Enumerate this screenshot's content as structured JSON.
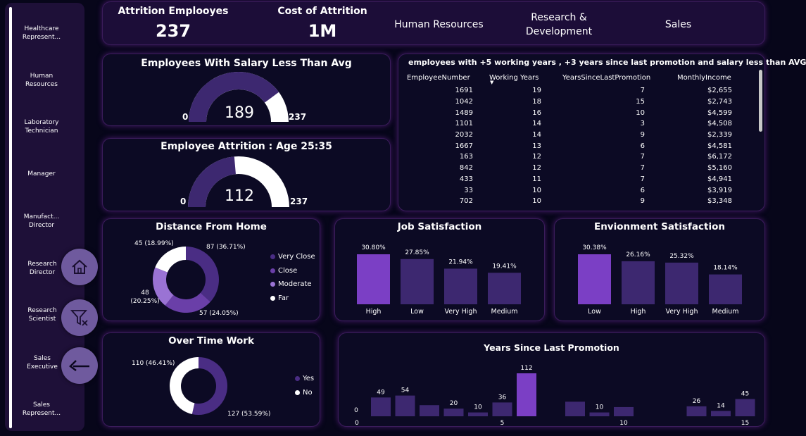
{
  "sidebar": {
    "items": [
      {
        "label": "Healthcare Represent..."
      },
      {
        "label": "Human Resources"
      },
      {
        "label": "Laboratory Technician"
      },
      {
        "label": "Manager"
      },
      {
        "label": "Manufact... Director"
      },
      {
        "label": "Research Director"
      },
      {
        "label": "Research Scientist"
      },
      {
        "label": "Sales Executive"
      },
      {
        "label": "Sales Represent..."
      }
    ]
  },
  "kpis": {
    "attrition_label": "Attrition Emplooyes",
    "attrition_value": "237",
    "cost_label": "Cost of Attrition",
    "cost_value": "1M"
  },
  "departments": [
    "Human Resources",
    "Research & Development",
    "Sales"
  ],
  "gauges": [
    {
      "title": "Employees With Salary Less Than Avg",
      "value": 189,
      "min": 0,
      "max": 237
    },
    {
      "title": "Employee Attrition : Age 25:35",
      "value": 112,
      "min": 0,
      "max": 237
    }
  ],
  "employee_table": {
    "title": "employees with +5 working years , +3 years since last promotion and salary less than AVG",
    "columns": [
      "EmployeeNumber",
      "Working Years",
      "YearsSinceLastPromotion",
      "MonthlyIncome"
    ],
    "rows": [
      [
        "1691",
        "19",
        "7",
        "$2,655"
      ],
      [
        "1042",
        "18",
        "15",
        "$2,743"
      ],
      [
        "1489",
        "16",
        "10",
        "$4,599"
      ],
      [
        "1101",
        "14",
        "3",
        "$4,508"
      ],
      [
        "2032",
        "14",
        "9",
        "$2,339"
      ],
      [
        "1667",
        "13",
        "6",
        "$4,581"
      ],
      [
        "163",
        "12",
        "7",
        "$6,172"
      ],
      [
        "842",
        "12",
        "7",
        "$5,160"
      ],
      [
        "433",
        "11",
        "7",
        "$4,941"
      ],
      [
        "33",
        "10",
        "6",
        "$3,919"
      ],
      [
        "702",
        "10",
        "9",
        "$3,348"
      ]
    ]
  },
  "chart_data": [
    {
      "type": "pie",
      "title": "Distance From Home",
      "categories": [
        "Very Close",
        "Close",
        "Moderate",
        "Far"
      ],
      "values": [
        87,
        57,
        48,
        45
      ],
      "labels": [
        "87 (36.71%)",
        "57 (24.05%)",
        "48 (20.25%)",
        "45 (18.99%)"
      ],
      "colors": [
        "#4a2d84",
        "#6a3fa8",
        "#9a73d4",
        "#ffffff"
      ]
    },
    {
      "type": "bar",
      "title": "Job Satisfaction",
      "categories": [
        "High",
        "Low",
        "Very High",
        "Medium"
      ],
      "values": [
        30.8,
        27.85,
        21.94,
        19.41
      ],
      "labels": [
        "30.80%",
        "27.85%",
        "21.94%",
        "19.41%"
      ]
    },
    {
      "type": "bar",
      "title": "Envionment Satisfaction",
      "categories": [
        "Low",
        "High",
        "Very High",
        "Medium"
      ],
      "values": [
        30.38,
        26.16,
        25.32,
        18.14
      ],
      "labels": [
        "30.38%",
        "26.16%",
        "25.32%",
        "18.14%"
      ]
    },
    {
      "type": "pie",
      "title": "Over Time Work",
      "categories": [
        "Yes",
        "No"
      ],
      "values": [
        127,
        110
      ],
      "labels": [
        "127 (53.59%)",
        "110 (46.41%)"
      ],
      "colors": [
        "#4a2d84",
        "#ffffff"
      ]
    },
    {
      "type": "bar",
      "title": "Years Since Last Promotion",
      "x": [
        0,
        1,
        2,
        3,
        4,
        5,
        6,
        7,
        8,
        9,
        10,
        11,
        12,
        13,
        14,
        15
      ],
      "values": [
        49,
        54,
        29,
        20,
        10,
        36,
        112,
        0,
        38,
        10,
        24,
        0,
        0,
        26,
        14,
        45
      ],
      "shown_labels": {
        "0": "49",
        "1": "54",
        "3": "20",
        "4": "10",
        "5": "36",
        "6": "112",
        "9": "10",
        "13": "26",
        "14": "14",
        "15": "45"
      },
      "highlight": 6,
      "tick_labels": [
        "0",
        "5",
        "10",
        "15"
      ],
      "axis_zero_label": "0"
    }
  ],
  "colors": {
    "background": "#07061a",
    "card": "#0c0a24",
    "purple_dark": "#4a2d84",
    "purple_mid": "#5a3a8e",
    "purple_bright": "#7b3fc5",
    "accent": "#ffffff"
  }
}
